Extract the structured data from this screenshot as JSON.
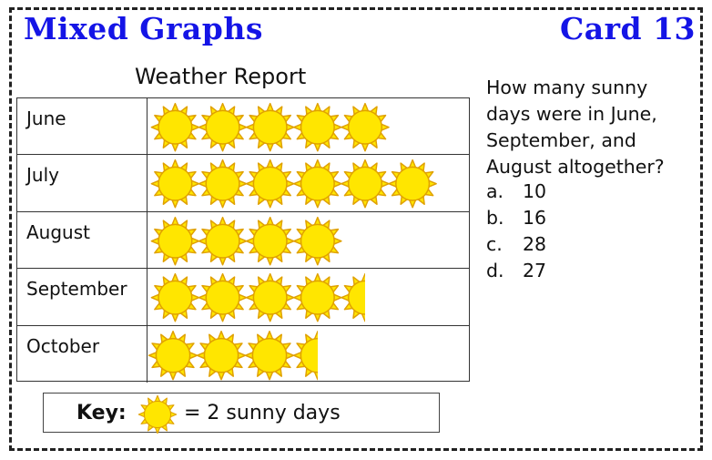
{
  "header": {
    "title": "Mixed Graphs",
    "card": "Card 13"
  },
  "question": {
    "text": "How many sunny days were in June, September, and August altogether?",
    "choices": [
      {
        "letter": "a.",
        "value": "10"
      },
      {
        "letter": "b.",
        "value": "16"
      },
      {
        "letter": "c.",
        "value": "28"
      },
      {
        "letter": "d.",
        "value": "27"
      }
    ]
  },
  "key": {
    "label": "Key:",
    "text": "= 2 sunny days",
    "icon": "sun-icon",
    "days_per_symbol": 2
  },
  "colors": {
    "title": "#1414e6",
    "sun_fill": "#ffe600",
    "sun_stroke": "#e0a100"
  },
  "chart_data": {
    "type": "table",
    "title": "Weather Report",
    "unit": "sunny days",
    "symbol_value": 2,
    "categories": [
      "June",
      "July",
      "August",
      "September",
      "October"
    ],
    "symbols": [
      5,
      6,
      4,
      4.5,
      3.5
    ],
    "values": [
      10,
      12,
      8,
      9,
      7
    ]
  }
}
